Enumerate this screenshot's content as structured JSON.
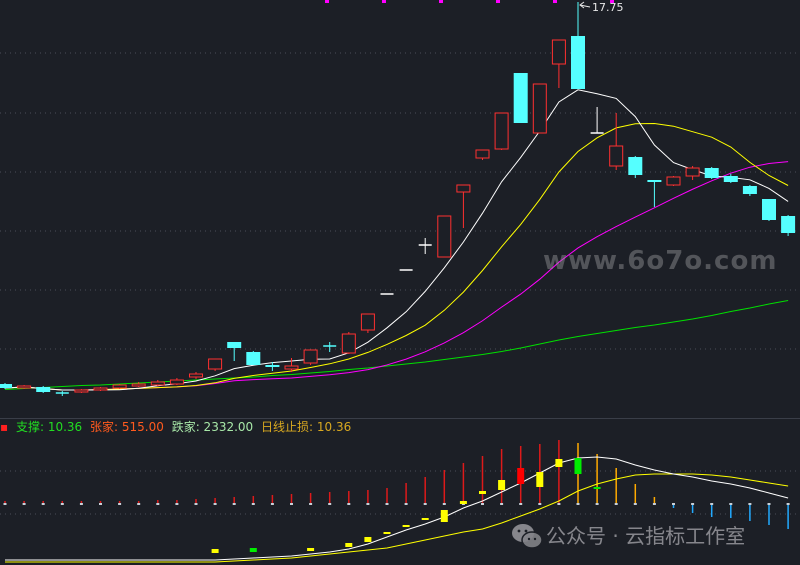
{
  "colors": {
    "background": "#1c1f26",
    "up": "#ff3030",
    "down": "#55ffff",
    "flat": "#ffffff",
    "ma5": "#ffffff",
    "ma10": "#ffff00",
    "ma20": "#ff00ff",
    "ma_long": "#00e000",
    "grid": "#4a4e58"
  },
  "peak_label": "17.75",
  "legend": [
    {
      "label": "支撑: 10.36",
      "color": "#22dd22"
    },
    {
      "label": "张家: 515.00",
      "color": "#ff5a1e"
    },
    {
      "label": "跌家: 2332.00",
      "color": "#a8e8a8"
    },
    {
      "label": "日线止损: 10.36",
      "color": "#d8a820"
    }
  ],
  "watermark_site": "www.6o7o.com",
  "watermark_account": "公众号 · 云指标工作室",
  "chart_data": [
    {
      "type": "candlestick",
      "title": "",
      "moving_averages": [
        {
          "period": 5,
          "color": "#ffffff"
        },
        {
          "period": 10,
          "color": "#ffff00"
        },
        {
          "period": 20,
          "color": "#ff00ff"
        }
      ],
      "grid": true,
      "candles": [
        [
          10.11,
          10.03,
          10.13,
          10.01
        ],
        [
          10.03,
          10.07,
          10.09,
          10.01
        ],
        [
          10.05,
          9.95,
          10.07,
          9.93
        ],
        [
          9.93,
          9.91,
          9.97,
          9.87
        ],
        [
          9.95,
          9.99,
          10.01,
          9.93
        ],
        [
          9.99,
          10.03,
          10.05,
          9.97
        ],
        [
          10.03,
          10.09,
          10.11,
          10.01
        ],
        [
          10.07,
          10.11,
          10.15,
          10.05
        ],
        [
          10.09,
          10.15,
          10.19,
          10.07
        ],
        [
          10.11,
          10.19,
          10.23,
          10.09
        ],
        [
          10.25,
          10.31,
          10.35,
          10.21
        ],
        [
          10.41,
          10.61,
          10.61,
          10.37
        ],
        [
          10.95,
          10.83,
          10.95,
          10.57
        ],
        [
          10.75,
          10.49,
          10.77,
          10.49
        ],
        [
          10.49,
          10.45,
          10.55,
          10.37
        ],
        [
          10.41,
          10.47,
          10.63,
          10.35
        ],
        [
          10.53,
          10.79,
          10.79,
          10.49
        ],
        [
          10.87,
          10.85,
          10.95,
          10.75
        ],
        [
          10.73,
          11.11,
          11.15,
          10.71
        ],
        [
          11.19,
          11.51,
          11.51,
          11.13
        ],
        [
          11.91,
          11.91,
          11.91,
          11.91
        ],
        [
          12.39,
          12.39,
          12.39,
          12.39
        ],
        [
          12.89,
          12.89,
          13.03,
          12.71
        ],
        [
          12.65,
          13.47,
          13.47,
          12.65
        ],
        [
          13.95,
          14.09,
          14.09,
          13.23
        ],
        [
          14.63,
          14.79,
          14.79,
          14.59
        ],
        [
          14.81,
          15.53,
          15.53,
          14.79
        ],
        [
          16.33,
          15.33,
          16.33,
          15.33
        ],
        [
          15.13,
          16.11,
          16.11,
          15.13
        ],
        [
          16.51,
          16.99,
          16.99,
          16.03
        ],
        [
          17.07,
          16.01,
          17.75,
          16.01
        ],
        [
          15.13,
          15.13,
          15.65,
          15.13
        ],
        [
          14.47,
          14.87,
          15.53,
          14.39
        ],
        [
          14.65,
          14.29,
          14.67,
          14.23
        ],
        [
          14.19,
          14.15,
          14.19,
          13.65
        ],
        [
          14.09,
          14.25,
          14.27,
          14.07
        ],
        [
          14.27,
          14.43,
          14.47,
          14.19
        ],
        [
          14.43,
          14.23,
          14.45,
          14.21
        ],
        [
          14.27,
          14.15,
          14.31,
          14.13
        ],
        [
          14.07,
          13.91,
          14.09,
          13.87
        ],
        [
          13.81,
          13.39,
          13.81,
          13.37
        ],
        [
          13.47,
          13.13,
          13.49,
          13.07
        ]
      ],
      "candle_fields": [
        "open",
        "close",
        "high",
        "low"
      ],
      "ma_long": [
        10.0,
        10.02,
        10.04,
        10.06,
        10.08,
        10.09,
        10.11,
        10.13,
        10.15,
        10.17,
        10.19,
        10.21,
        10.23,
        10.25,
        10.28,
        10.3,
        10.33,
        10.36,
        10.4,
        10.43,
        10.47,
        10.51,
        10.55,
        10.6,
        10.65,
        10.7,
        10.76,
        10.83,
        10.91,
        10.99,
        11.06,
        11.12,
        11.18,
        11.24,
        11.29,
        11.35,
        11.41,
        11.48,
        11.56,
        11.63,
        11.71,
        11.78
      ],
      "high_marker": 17.75
    },
    {
      "type": "indicator",
      "title": "",
      "bars": [
        0.3,
        0.3,
        0.3,
        0.3,
        0.3,
        0.3,
        0.3,
        0.3,
        0.4,
        0.4,
        0.5,
        0.6,
        0.7,
        0.8,
        0.9,
        1.0,
        1.1,
        1.2,
        1.3,
        1.4,
        1.6,
        2.1,
        2.7,
        3.4,
        4.1,
        4.8,
        5.5,
        5.8,
        6.0,
        6.4,
        6.1,
        5.0,
        3.6,
        2.0,
        0.7,
        -0.4,
        -0.9,
        -1.3,
        -1.4,
        -1.7,
        -2.1,
        -2.5
      ],
      "bar_colors": {
        "rising": "#dd1a1a",
        "falling": "#ffaa00",
        "negative": "#22aaff"
      },
      "boxes": [
        {
          "index": 11,
          "from": -4.5,
          "to": -4.9,
          "color": "#ffff00"
        },
        {
          "index": 13,
          "from": -4.4,
          "to": -4.8,
          "color": "#00ee00"
        },
        {
          "index": 16,
          "from": -4.4,
          "to": -4.7,
          "color": "#ffff00"
        },
        {
          "index": 18,
          "from": -3.9,
          "to": -4.3,
          "color": "#ffff00"
        },
        {
          "index": 19,
          "from": -3.3,
          "to": -3.8,
          "color": "#ffff00"
        },
        {
          "index": 20,
          "from": -2.8,
          "to": -2.8,
          "color": "#ffff00"
        },
        {
          "index": 21,
          "from": -2.1,
          "to": -2.1,
          "color": "#ffff00"
        },
        {
          "index": 22,
          "from": -1.4,
          "to": -1.4,
          "color": "#ffff00"
        },
        {
          "index": 23,
          "from": -0.6,
          "to": -1.8,
          "color": "#ffff00"
        },
        {
          "index": 24,
          "from": 0.3,
          "to": 0.0,
          "color": "#ffff00"
        },
        {
          "index": 25,
          "from": 1.3,
          "to": 1.0,
          "color": "#ffff00"
        },
        {
          "index": 26,
          "from": 2.4,
          "to": 1.4,
          "color": "#ffff00"
        },
        {
          "index": 27,
          "from": 3.6,
          "to": 2.0,
          "color": "#ff0000"
        },
        {
          "index": 28,
          "from": 3.2,
          "to": 1.7,
          "color": "#ffff00"
        },
        {
          "index": 29,
          "from": 4.5,
          "to": 3.7,
          "color": "#ffff00"
        },
        {
          "index": 30,
          "from": 4.6,
          "to": 3.0,
          "color": "#00ee00"
        },
        {
          "index": 31,
          "from": 1.7,
          "to": 1.7,
          "color": "#00ee00"
        }
      ],
      "line_white": [
        -5.6,
        -5.6,
        -5.6,
        -5.6,
        -5.6,
        -5.6,
        -5.6,
        -5.6,
        -5.6,
        -5.6,
        -5.6,
        -5.6,
        -5.5,
        -5.4,
        -5.3,
        -5.2,
        -5.0,
        -4.8,
        -4.5,
        -4.0,
        -3.3,
        -2.6,
        -2.0,
        -1.3,
        -0.4,
        0.3,
        1.2,
        2.1,
        3.1,
        4.1,
        4.6,
        4.7,
        4.5,
        3.9,
        3.4,
        3.0,
        2.7,
        2.3,
        2.0,
        1.6,
        1.1,
        0.6
      ],
      "line_yellow": [
        -5.8,
        -5.8,
        -5.8,
        -5.8,
        -5.8,
        -5.8,
        -5.8,
        -5.8,
        -5.8,
        -5.8,
        -5.8,
        -5.8,
        -5.7,
        -5.6,
        -5.5,
        -5.4,
        -5.2,
        -5.0,
        -4.8,
        -4.6,
        -4.4,
        -4.0,
        -3.6,
        -3.2,
        -2.8,
        -2.5,
        -1.9,
        -1.2,
        -0.5,
        0.3,
        1.3,
        2.0,
        2.5,
        2.9,
        3.0,
        3.0,
        3.0,
        2.9,
        2.7,
        2.4,
        2.1,
        1.8
      ]
    }
  ]
}
